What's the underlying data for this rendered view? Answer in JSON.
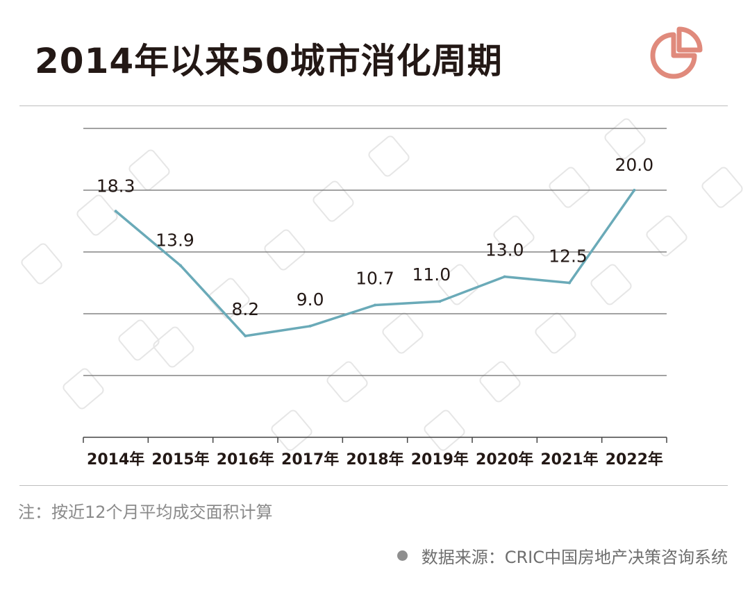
{
  "header": {
    "title": "2014年以来50城市消化周期"
  },
  "icons": {
    "corner": "pie-chart-icon"
  },
  "colors": {
    "line": "#6aaab8",
    "icon": "#e08a7c",
    "grid": "#6b6b6b",
    "text": "#231815"
  },
  "chart_data": {
    "type": "line",
    "title": "2014年以来50城市消化周期",
    "categories": [
      "2014年",
      "2015年",
      "2016年",
      "2017年",
      "2018年",
      "2019年",
      "2020年",
      "2021年",
      "2022年"
    ],
    "values": [
      18.3,
      13.9,
      8.2,
      9.0,
      10.7,
      11.0,
      13.0,
      12.5,
      20.0
    ],
    "value_labels": [
      "18.3",
      "13.9",
      "8.2",
      "9.0",
      "10.7",
      "11.0",
      "13.0",
      "12.5",
      "20.0"
    ],
    "ylim": [
      0,
      25
    ],
    "y_gridlines": [
      5,
      10,
      15,
      20,
      25
    ],
    "y_tick_labels_shown": false,
    "grid": true,
    "legend": "none"
  },
  "footer": {
    "note": "注：按近12个月平均成交面积计算",
    "source": "数据来源：CRIC中国房地产决策咨询系统"
  }
}
